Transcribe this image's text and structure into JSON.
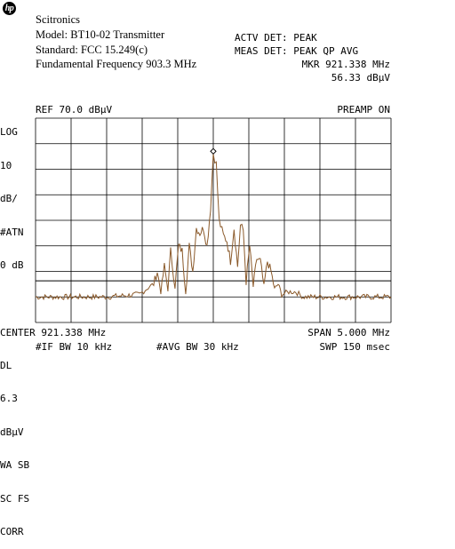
{
  "logo": {
    "text": "hp",
    "icon": "hp-logo-icon"
  },
  "header": {
    "company": "Scitronics",
    "model": "Model: BT10-02 Transmitter",
    "standard": "Standard: FCC 15.249(c)",
    "fundamental": "Fundamental Frequency 903.3 MHz"
  },
  "status": {
    "actv_det": "ACTV DET: PEAK",
    "meas_det": "MEAS DET: PEAK QP AVG",
    "marker_freq": "MKR 921.338 MHz",
    "marker_level": "56.33 dBµV"
  },
  "annotations": {
    "ref_level": "REF 70.0 dBµV",
    "preamp": "PREAMP ON",
    "left_panel": [
      "LOG",
      "10",
      "dB/",
      "#ATN",
      "0 dB",
      "",
      "",
      "",
      "DL",
      "6.3",
      "dBµV",
      "WA SB",
      "SC FS",
      "CORR"
    ]
  },
  "footer": {
    "center": "CENTER 921.338 MHz",
    "span": "SPAN 5.000 MHz",
    "if_bw": "#IF BW 10 kHz",
    "avg_bw": "#AVG BW 30 kHz",
    "sweep": "SWP 150 msec"
  },
  "colors": {
    "trace": "#8b5a2b",
    "grid": "#000000",
    "background": "#ffffff"
  },
  "chart_data": {
    "type": "line",
    "center_mhz": 921.338,
    "span_mhz": 5.0,
    "ref_level_dbuv": 70.0,
    "db_per_div": 10,
    "xlim": [
      918.838,
      923.838
    ],
    "ylim": [
      -10,
      70
    ],
    "display_line_dbuv": 6.3,
    "marker": {
      "x": 921.338,
      "y": 56.33
    },
    "series": [
      {
        "x": [
          918.838,
          919.838,
          920.3,
          920.438,
          920.5,
          920.55,
          920.6,
          920.65,
          920.7,
          920.738,
          920.8,
          920.85,
          920.9,
          920.95,
          921.0,
          921.05,
          921.1,
          921.15,
          921.2,
          921.25,
          921.3,
          921.338,
          921.38,
          921.42,
          921.48,
          921.53,
          921.58,
          921.63,
          921.68,
          921.72,
          921.76,
          921.8,
          921.85,
          921.9,
          921.95,
          922.0,
          922.05,
          922.1,
          922.15,
          922.2,
          922.25,
          922.3,
          922.4,
          922.5,
          922.6,
          922.838,
          923.838
        ],
        "y": [
          0,
          0,
          1,
          4,
          5,
          10,
          2,
          12,
          3,
          18,
          4,
          20,
          18,
          2,
          20,
          10,
          27,
          25,
          27,
          20,
          35,
          56.33,
          52,
          30,
          24,
          22,
          14,
          27,
          12,
          28,
          26,
          6,
          20,
          4,
          15,
          14,
          4,
          14,
          10,
          3,
          5,
          1,
          2,
          2,
          0,
          0,
          0
        ]
      }
    ]
  }
}
